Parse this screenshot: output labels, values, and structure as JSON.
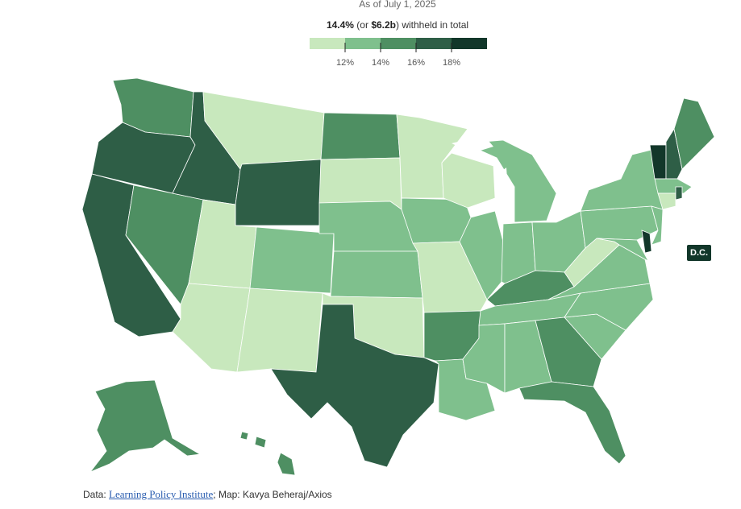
{
  "header": {
    "as_of": "As of July 1, 2025",
    "headline_pct": "14.4%",
    "headline_mid": " (or ",
    "headline_amount": "$6.2b",
    "headline_tail": ") withheld in total"
  },
  "legend": {
    "ticks": [
      "12%",
      "14%",
      "16%",
      "18%"
    ],
    "colors": [
      "#c8e8bd",
      "#7fc08d",
      "#4e8f62",
      "#2e5e46",
      "#12372a"
    ]
  },
  "dc_label": "D.C.",
  "source": {
    "prefix": "Data: ",
    "link_text": "Learning Policy Institute",
    "suffix": "; Map: Kavya Beheraj/Axios"
  },
  "map": {
    "class_colors": {
      "very_light": "#c8e8bd",
      "light": "#7fc08d",
      "medium": "#4e8f62",
      "dark": "#2e5e46",
      "darkest": "#12372a"
    },
    "states": {
      "WA": "medium",
      "OR": "dark",
      "CA": "dark",
      "ID": "dark",
      "NV": "medium",
      "MT": "very_light",
      "WY": "dark",
      "UT": "very_light",
      "AZ": "very_light",
      "CO": "light",
      "NM": "very_light",
      "ND": "medium",
      "SD": "very_light",
      "NE": "light",
      "KS": "light",
      "OK": "very_light",
      "TX": "dark",
      "MN": "very_light",
      "IA": "light",
      "MO": "very_light",
      "AR": "medium",
      "LA": "light",
      "WI": "very_light",
      "IL": "light",
      "MI": "light",
      "IN": "light",
      "OH": "light",
      "KY": "medium",
      "TN": "light",
      "MS": "light",
      "AL": "light",
      "GA": "medium",
      "FL": "medium",
      "SC": "light",
      "NC": "light",
      "VA": "light",
      "WV": "very_light",
      "PA": "light",
      "NY": "light",
      "VT": "darkest",
      "NH": "dark",
      "ME": "medium",
      "MA": "light",
      "CT": "very_light",
      "RI": "dark",
      "NJ": "light",
      "DE": "darkest",
      "MD": "light",
      "AK": "medium",
      "HI": "medium"
    }
  }
}
